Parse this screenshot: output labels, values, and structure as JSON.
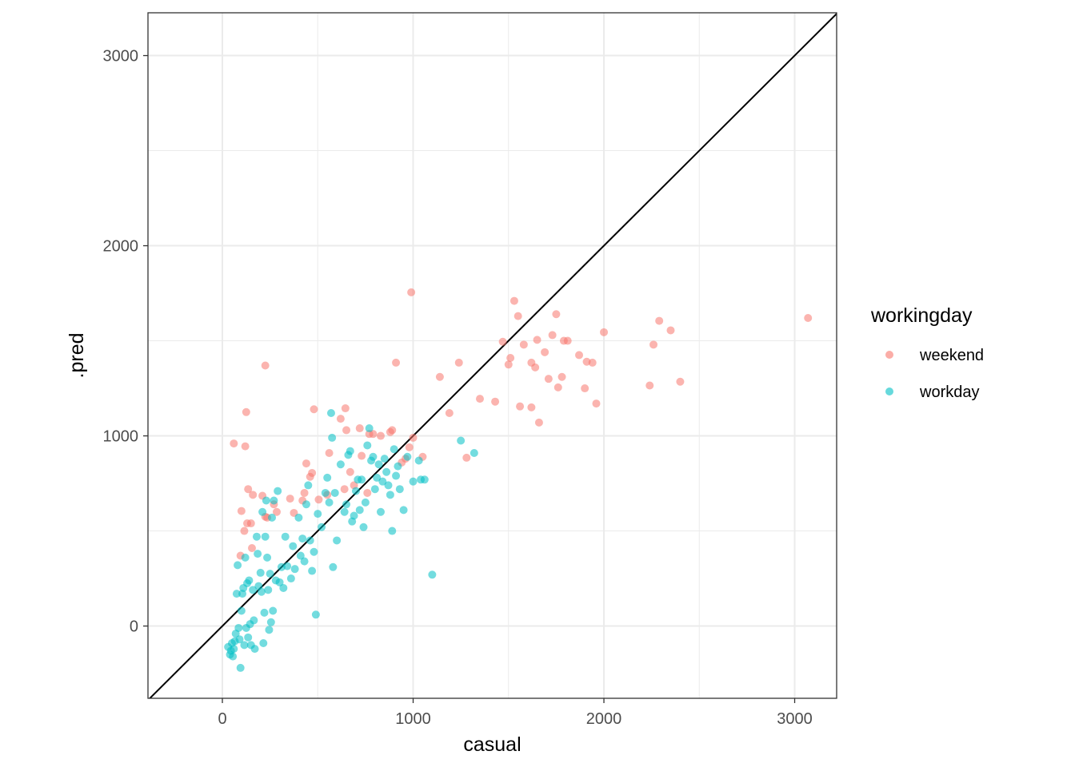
{
  "chart_data": {
    "type": "scatter",
    "xlabel": "casual",
    "ylabel": ".pred",
    "xlim": [
      -390,
      3220
    ],
    "ylim": [
      -380,
      3225
    ],
    "x_ticks": [
      0,
      1000,
      2000,
      3000
    ],
    "y_ticks": [
      0,
      1000,
      2000,
      3000
    ],
    "x_tick_labels": [
      "0",
      "1000",
      "2000",
      "3000"
    ],
    "y_tick_labels": [
      "0",
      "1000",
      "2000",
      "3000"
    ],
    "grid": true,
    "reference_line": "y = x",
    "legend": {
      "title": "workingday",
      "placement": "right"
    },
    "series": [
      {
        "name": "weekend",
        "color": "#F8766D",
        "points": [
          [
            60,
            960
          ],
          [
            120,
            945
          ],
          [
            125,
            1125
          ],
          [
            135,
            720
          ],
          [
            130,
            540
          ],
          [
            115,
            500
          ],
          [
            100,
            605
          ],
          [
            95,
            370
          ],
          [
            150,
            540
          ],
          [
            160,
            690
          ],
          [
            155,
            410
          ],
          [
            210,
            685
          ],
          [
            225,
            575
          ],
          [
            235,
            570
          ],
          [
            225,
            1370
          ],
          [
            270,
            640
          ],
          [
            285,
            600
          ],
          [
            355,
            670
          ],
          [
            375,
            595
          ],
          [
            420,
            660
          ],
          [
            430,
            700
          ],
          [
            440,
            855
          ],
          [
            460,
            785
          ],
          [
            470,
            805
          ],
          [
            480,
            1140
          ],
          [
            505,
            665
          ],
          [
            560,
            910
          ],
          [
            550,
            690
          ],
          [
            620,
            1090
          ],
          [
            640,
            720
          ],
          [
            645,
            1145
          ],
          [
            650,
            1030
          ],
          [
            670,
            810
          ],
          [
            690,
            740
          ],
          [
            720,
            1040
          ],
          [
            730,
            895
          ],
          [
            760,
            700
          ],
          [
            770,
            1010
          ],
          [
            790,
            1010
          ],
          [
            830,
            1000
          ],
          [
            880,
            1020
          ],
          [
            890,
            1030
          ],
          [
            910,
            1385
          ],
          [
            940,
            860
          ],
          [
            960,
            880
          ],
          [
            980,
            940
          ],
          [
            990,
            1755
          ],
          [
            1000,
            990
          ],
          [
            1050,
            890
          ],
          [
            1140,
            1310
          ],
          [
            1190,
            1120
          ],
          [
            1240,
            1385
          ],
          [
            1280,
            885
          ],
          [
            1350,
            1195
          ],
          [
            1430,
            1180
          ],
          [
            1470,
            1495
          ],
          [
            1500,
            1375
          ],
          [
            1510,
            1410
          ],
          [
            1530,
            1710
          ],
          [
            1550,
            1630
          ],
          [
            1560,
            1155
          ],
          [
            1580,
            1480
          ],
          [
            1620,
            1385
          ],
          [
            1620,
            1150
          ],
          [
            1640,
            1360
          ],
          [
            1650,
            1505
          ],
          [
            1660,
            1070
          ],
          [
            1690,
            1440
          ],
          [
            1710,
            1300
          ],
          [
            1730,
            1530
          ],
          [
            1750,
            1640
          ],
          [
            1760,
            1255
          ],
          [
            1780,
            1310
          ],
          [
            1790,
            1500
          ],
          [
            1810,
            1500
          ],
          [
            1870,
            1425
          ],
          [
            1900,
            1250
          ],
          [
            1910,
            1390
          ],
          [
            1940,
            1385
          ],
          [
            1960,
            1170
          ],
          [
            2000,
            1545
          ],
          [
            2240,
            1265
          ],
          [
            2260,
            1480
          ],
          [
            2290,
            1605
          ],
          [
            2350,
            1555
          ],
          [
            2400,
            1285
          ],
          [
            3070,
            1620
          ]
        ]
      },
      {
        "name": "workday",
        "color": "#00BFC4",
        "points": [
          [
            30,
            -110
          ],
          [
            40,
            -150
          ],
          [
            45,
            -130
          ],
          [
            50,
            -90
          ],
          [
            55,
            -160
          ],
          [
            60,
            -120
          ],
          [
            65,
            -80
          ],
          [
            70,
            -40
          ],
          [
            75,
            170
          ],
          [
            80,
            320
          ],
          [
            85,
            -10
          ],
          [
            90,
            -70
          ],
          [
            95,
            -220
          ],
          [
            100,
            80
          ],
          [
            105,
            170
          ],
          [
            110,
            200
          ],
          [
            115,
            -100
          ],
          [
            120,
            360
          ],
          [
            125,
            -10
          ],
          [
            130,
            225
          ],
          [
            135,
            -60
          ],
          [
            140,
            240
          ],
          [
            145,
            10
          ],
          [
            150,
            -100
          ],
          [
            160,
            190
          ],
          [
            165,
            30
          ],
          [
            170,
            -120
          ],
          [
            180,
            470
          ],
          [
            185,
            380
          ],
          [
            190,
            210
          ],
          [
            200,
            280
          ],
          [
            205,
            180
          ],
          [
            210,
            600
          ],
          [
            215,
            -90
          ],
          [
            220,
            70
          ],
          [
            225,
            470
          ],
          [
            230,
            660
          ],
          [
            235,
            360
          ],
          [
            240,
            190
          ],
          [
            245,
            -20
          ],
          [
            250,
            275
          ],
          [
            255,
            20
          ],
          [
            260,
            570
          ],
          [
            265,
            80
          ],
          [
            270,
            660
          ],
          [
            280,
            240
          ],
          [
            290,
            710
          ],
          [
            300,
            230
          ],
          [
            310,
            310
          ],
          [
            320,
            200
          ],
          [
            330,
            470
          ],
          [
            340,
            315
          ],
          [
            360,
            250
          ],
          [
            370,
            420
          ],
          [
            380,
            300
          ],
          [
            400,
            570
          ],
          [
            410,
            370
          ],
          [
            420,
            460
          ],
          [
            430,
            340
          ],
          [
            440,
            640
          ],
          [
            450,
            740
          ],
          [
            460,
            450
          ],
          [
            470,
            290
          ],
          [
            480,
            390
          ],
          [
            490,
            60
          ],
          [
            500,
            590
          ],
          [
            520,
            520
          ],
          [
            540,
            700
          ],
          [
            550,
            780
          ],
          [
            560,
            650
          ],
          [
            570,
            1120
          ],
          [
            575,
            990
          ],
          [
            580,
            310
          ],
          [
            590,
            700
          ],
          [
            600,
            450
          ],
          [
            620,
            850
          ],
          [
            640,
            600
          ],
          [
            650,
            640
          ],
          [
            660,
            900
          ],
          [
            670,
            920
          ],
          [
            680,
            550
          ],
          [
            690,
            580
          ],
          [
            700,
            710
          ],
          [
            710,
            770
          ],
          [
            720,
            610
          ],
          [
            730,
            770
          ],
          [
            740,
            520
          ],
          [
            750,
            650
          ],
          [
            760,
            950
          ],
          [
            770,
            1040
          ],
          [
            780,
            870
          ],
          [
            790,
            890
          ],
          [
            800,
            720
          ],
          [
            810,
            780
          ],
          [
            820,
            850
          ],
          [
            830,
            600
          ],
          [
            840,
            760
          ],
          [
            850,
            880
          ],
          [
            860,
            810
          ],
          [
            870,
            740
          ],
          [
            880,
            690
          ],
          [
            890,
            500
          ],
          [
            900,
            930
          ],
          [
            910,
            790
          ],
          [
            920,
            840
          ],
          [
            930,
            720
          ],
          [
            950,
            610
          ],
          [
            970,
            890
          ],
          [
            1000,
            760
          ],
          [
            1030,
            870
          ],
          [
            1040,
            770
          ],
          [
            1060,
            770
          ],
          [
            1100,
            270
          ],
          [
            1250,
            975
          ],
          [
            1320,
            910
          ]
        ]
      }
    ]
  }
}
